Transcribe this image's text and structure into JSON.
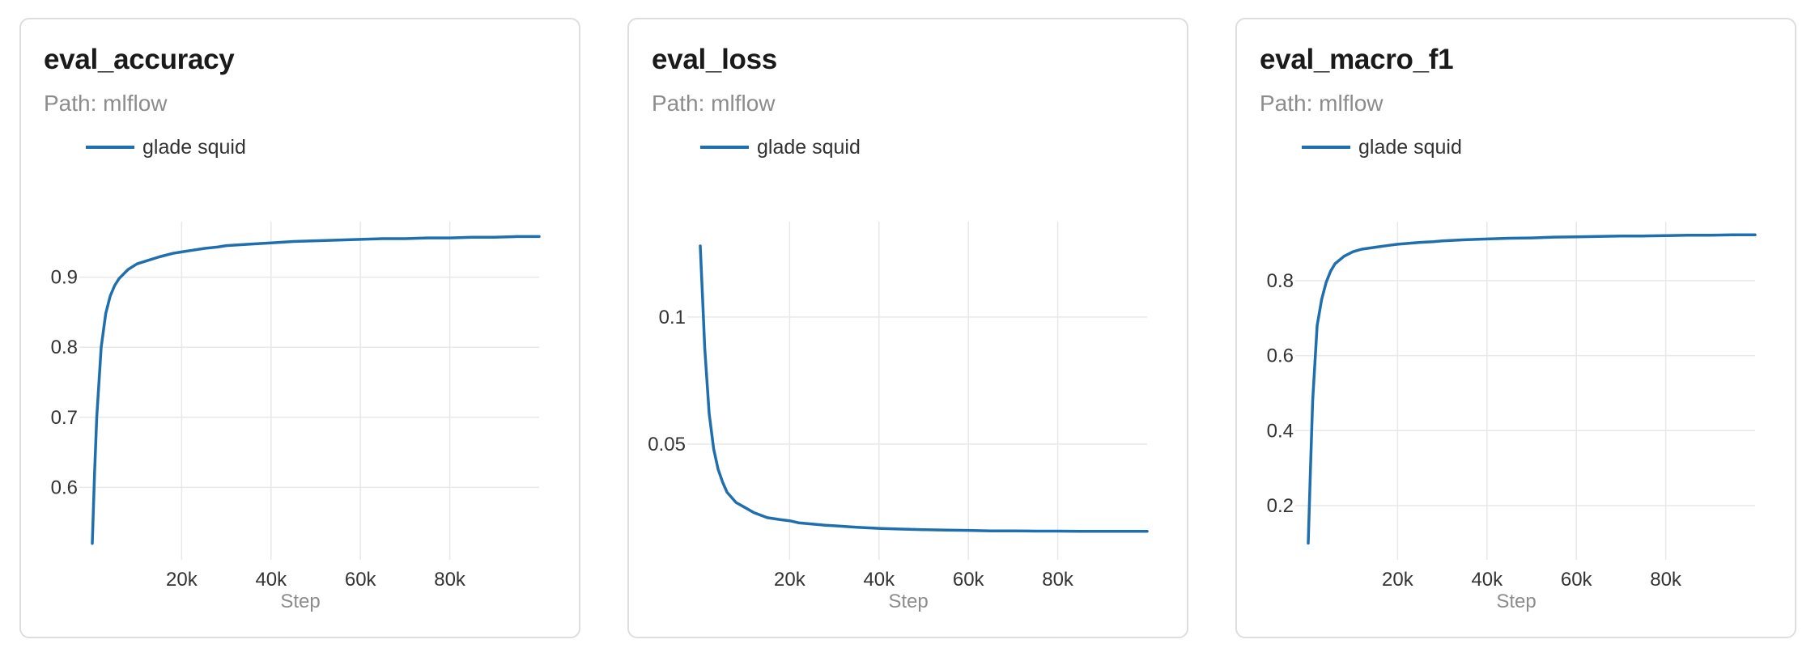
{
  "chart_data": [
    {
      "type": "line",
      "title": "eval_accuracy",
      "subtitle": "Path: mlflow",
      "xlabel": "Step",
      "ylabel": "",
      "xlim": [
        0,
        100000
      ],
      "ylim": [
        0.515,
        0.97
      ],
      "xticks": [
        20000,
        40000,
        60000,
        80000
      ],
      "xtick_labels": [
        "20k",
        "40k",
        "60k",
        "80k"
      ],
      "yticks": [
        0.6,
        0.7,
        0.8,
        0.9
      ],
      "ytick_labels": [
        "0.6",
        "0.7",
        "0.8",
        "0.9"
      ],
      "grid": true,
      "legend": "top-left",
      "color": "#1f6fae",
      "series": [
        {
          "name": "glade squid",
          "x": [
            0,
            500,
            1000,
            2000,
            3000,
            4000,
            5000,
            6000,
            8000,
            10000,
            12000,
            15000,
            18000,
            20000,
            22000,
            25000,
            28000,
            30000,
            35000,
            40000,
            45000,
            50000,
            55000,
            60000,
            65000,
            70000,
            75000,
            80000,
            85000,
            90000,
            95000,
            100000
          ],
          "y": [
            0.52,
            0.62,
            0.7,
            0.8,
            0.848,
            0.873,
            0.888,
            0.898,
            0.911,
            0.919,
            0.923,
            0.929,
            0.934,
            0.936,
            0.938,
            0.941,
            0.943,
            0.945,
            0.947,
            0.949,
            0.951,
            0.952,
            0.953,
            0.954,
            0.955,
            0.955,
            0.956,
            0.956,
            0.957,
            0.957,
            0.958,
            0.958
          ]
        }
      ]
    },
    {
      "type": "line",
      "title": "eval_loss",
      "subtitle": "Path: mlflow",
      "xlabel": "Step",
      "ylabel": "",
      "xlim": [
        0,
        100000
      ],
      "ylim": [
        0.0095,
        0.135
      ],
      "xticks": [
        20000,
        40000,
        60000,
        80000
      ],
      "xtick_labels": [
        "20k",
        "40k",
        "60k",
        "80k"
      ],
      "yticks": [
        0.05,
        0.1
      ],
      "ytick_labels": [
        "0.05",
        "0.1"
      ],
      "grid": true,
      "legend": "top-left",
      "color": "#1f6fae",
      "series": [
        {
          "name": "glade squid",
          "x": [
            0,
            500,
            1000,
            2000,
            3000,
            4000,
            5000,
            6000,
            8000,
            10000,
            12000,
            15000,
            18000,
            20000,
            22000,
            25000,
            28000,
            30000,
            35000,
            40000,
            45000,
            50000,
            55000,
            60000,
            65000,
            70000,
            75000,
            80000,
            85000,
            90000,
            95000,
            100000
          ],
          "y": [
            0.128,
            0.108,
            0.088,
            0.062,
            0.048,
            0.04,
            0.035,
            0.031,
            0.027,
            0.025,
            0.023,
            0.021,
            0.0202,
            0.0198,
            0.019,
            0.0185,
            0.018,
            0.0178,
            0.0172,
            0.0168,
            0.0165,
            0.0163,
            0.0161,
            0.016,
            0.0158,
            0.0158,
            0.0157,
            0.0157,
            0.0156,
            0.0156,
            0.0156,
            0.0156
          ]
        }
      ]
    },
    {
      "type": "line",
      "title": "eval_macro_f1",
      "subtitle": "Path: mlflow",
      "xlabel": "Step",
      "ylabel": "",
      "xlim": [
        0,
        100000
      ],
      "ylim": [
        0.09,
        0.94
      ],
      "xticks": [
        20000,
        40000,
        60000,
        80000
      ],
      "xtick_labels": [
        "20k",
        "40k",
        "60k",
        "80k"
      ],
      "yticks": [
        0.2,
        0.4,
        0.6,
        0.8
      ],
      "ytick_labels": [
        "0.2",
        "0.4",
        "0.6",
        "0.8"
      ],
      "grid": true,
      "legend": "top-left",
      "color": "#1f6fae",
      "series": [
        {
          "name": "glade squid",
          "x": [
            0,
            500,
            1000,
            2000,
            3000,
            4000,
            5000,
            6000,
            8000,
            10000,
            12000,
            15000,
            18000,
            20000,
            22000,
            25000,
            28000,
            30000,
            35000,
            40000,
            45000,
            50000,
            55000,
            60000,
            65000,
            70000,
            75000,
            80000,
            85000,
            90000,
            95000,
            100000
          ],
          "y": [
            0.1,
            0.3,
            0.48,
            0.68,
            0.75,
            0.795,
            0.825,
            0.845,
            0.865,
            0.877,
            0.884,
            0.889,
            0.894,
            0.897,
            0.899,
            0.902,
            0.904,
            0.906,
            0.909,
            0.911,
            0.913,
            0.914,
            0.916,
            0.917,
            0.918,
            0.919,
            0.919,
            0.92,
            0.921,
            0.921,
            0.922,
            0.922
          ]
        }
      ]
    }
  ]
}
